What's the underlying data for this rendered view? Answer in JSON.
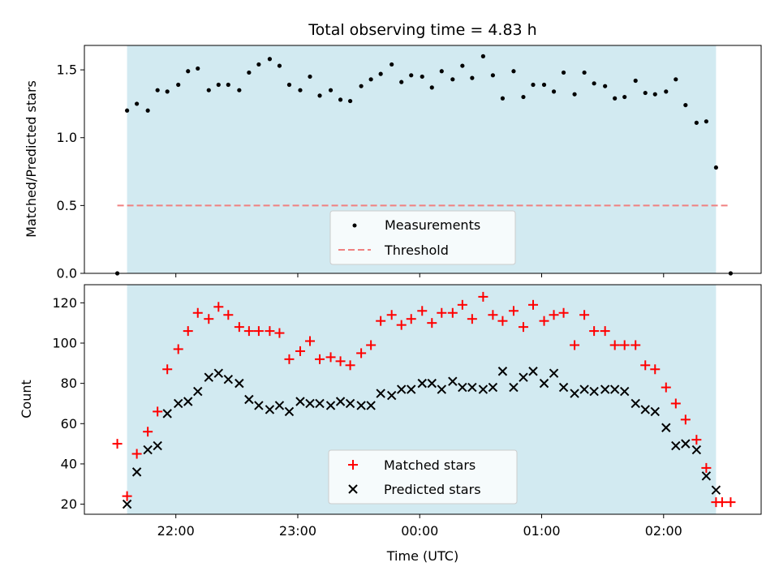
{
  "colors": {
    "shade": "#add8e6",
    "matched": "#ff0000",
    "predicted": "#000000",
    "measurement": "#000000",
    "threshold": "#f08080"
  },
  "chart_data": [
    {
      "type": "scatter",
      "title": "Total observing time = 4.83 h",
      "xlabel": "",
      "ylabel": "Matched/Predicted stars",
      "x_unit": "hours since 00:00 UTC (negative = previous day)",
      "xlim": [
        -2.75,
        2.8
      ],
      "ylim": [
        0,
        1.68
      ],
      "yticks": [
        0.0,
        0.5,
        1.0,
        1.5
      ],
      "ytick_labels": [
        "0.0",
        "0.5",
        "1.0",
        "1.5"
      ],
      "xticks": [
        -2,
        -1,
        0,
        1,
        2
      ],
      "show_xtick_labels": false,
      "shaded_interval": [
        -2.4,
        2.43
      ],
      "legend_position": "bottom-center",
      "threshold": 0.5,
      "threshold_x": [
        -2.48,
        2.55
      ],
      "series": [
        {
          "name": "Measurements",
          "marker": "dot",
          "x": [
            -2.48,
            -2.4,
            -2.32,
            -2.23,
            -2.15,
            -2.07,
            -1.98,
            -1.9,
            -1.82,
            -1.73,
            -1.65,
            -1.57,
            -1.48,
            -1.4,
            -1.32,
            -1.23,
            -1.15,
            -1.07,
            -0.98,
            -0.9,
            -0.82,
            -0.73,
            -0.65,
            -0.57,
            -0.48,
            -0.4,
            -0.32,
            -0.23,
            -0.15,
            -0.07,
            0.02,
            0.1,
            0.18,
            0.27,
            0.35,
            0.43,
            0.52,
            0.6,
            0.68,
            0.77,
            0.85,
            0.93,
            1.02,
            1.1,
            1.18,
            1.27,
            1.35,
            1.43,
            1.52,
            1.6,
            1.68,
            1.77,
            1.85,
            1.93,
            2.02,
            2.1,
            2.18,
            2.27,
            2.35,
            2.43,
            2.55
          ],
          "y": [
            0.0,
            1.2,
            1.25,
            1.2,
            1.35,
            1.34,
            1.39,
            1.49,
            1.51,
            1.35,
            1.39,
            1.39,
            1.35,
            1.48,
            1.54,
            1.58,
            1.53,
            1.39,
            1.35,
            1.45,
            1.31,
            1.35,
            1.28,
            1.27,
            1.38,
            1.43,
            1.47,
            1.54,
            1.41,
            1.46,
            1.45,
            1.37,
            1.49,
            1.43,
            1.53,
            1.44,
            1.6,
            1.46,
            1.29,
            1.49,
            1.3,
            1.39,
            1.39,
            1.34,
            1.48,
            1.32,
            1.48,
            1.4,
            1.38,
            1.29,
            1.3,
            1.42,
            1.33,
            1.32,
            1.34,
            1.43,
            1.24,
            1.11,
            1.12,
            0.78,
            0.0
          ]
        },
        {
          "name": "Threshold",
          "marker": "dashed-line"
        }
      ]
    },
    {
      "type": "scatter",
      "title": "",
      "xlabel": "Time (UTC)",
      "ylabel": "Count",
      "x_unit": "hours since 00:00 UTC (negative = previous day)",
      "xlim": [
        -2.75,
        2.8
      ],
      "ylim": [
        15,
        129
      ],
      "yticks": [
        20,
        40,
        60,
        80,
        100,
        120
      ],
      "ytick_labels": [
        "20",
        "40",
        "60",
        "80",
        "100",
        "120"
      ],
      "xticks": [
        -2,
        -1,
        0,
        1,
        2
      ],
      "xtick_labels": [
        "22:00",
        "23:00",
        "00:00",
        "01:00",
        "02:00"
      ],
      "shaded_interval": [
        -2.4,
        2.43
      ],
      "legend_position": "bottom-center",
      "series": [
        {
          "name": "Matched stars",
          "marker": "plus",
          "x": [
            -2.48,
            -2.4,
            -2.32,
            -2.23,
            -2.15,
            -2.07,
            -1.98,
            -1.9,
            -1.82,
            -1.73,
            -1.65,
            -1.57,
            -1.48,
            -1.4,
            -1.32,
            -1.23,
            -1.15,
            -1.07,
            -0.98,
            -0.9,
            -0.82,
            -0.73,
            -0.65,
            -0.57,
            -0.48,
            -0.4,
            -0.32,
            -0.23,
            -0.15,
            -0.07,
            0.02,
            0.1,
            0.18,
            0.27,
            0.35,
            0.43,
            0.52,
            0.6,
            0.68,
            0.77,
            0.85,
            0.93,
            1.02,
            1.1,
            1.18,
            1.27,
            1.35,
            1.43,
            1.52,
            1.6,
            1.68,
            1.77,
            1.85,
            1.93,
            2.02,
            2.1,
            2.18,
            2.27,
            2.35,
            2.43,
            2.48,
            2.55
          ],
          "y": [
            50,
            24,
            45,
            56,
            66,
            87,
            97,
            106,
            115,
            112,
            118,
            114,
            108,
            106,
            106,
            106,
            105,
            92,
            96,
            101,
            92,
            93,
            91,
            89,
            95,
            99,
            111,
            114,
            109,
            112,
            116,
            110,
            115,
            115,
            119,
            112,
            123,
            114,
            111,
            116,
            108,
            119,
            111,
            114,
            115,
            99,
            114,
            106,
            106,
            99,
            99,
            99,
            89,
            87,
            78,
            70,
            62,
            52,
            38,
            21,
            21,
            21
          ]
        },
        {
          "name": "Predicted stars",
          "marker": "x",
          "x": [
            -2.4,
            -2.32,
            -2.23,
            -2.15,
            -2.07,
            -1.98,
            -1.9,
            -1.82,
            -1.73,
            -1.65,
            -1.57,
            -1.48,
            -1.4,
            -1.32,
            -1.23,
            -1.15,
            -1.07,
            -0.98,
            -0.9,
            -0.82,
            -0.73,
            -0.65,
            -0.57,
            -0.48,
            -0.4,
            -0.32,
            -0.23,
            -0.15,
            -0.07,
            0.02,
            0.1,
            0.18,
            0.27,
            0.35,
            0.43,
            0.52,
            0.6,
            0.68,
            0.77,
            0.85,
            0.93,
            1.02,
            1.1,
            1.18,
            1.27,
            1.35,
            1.43,
            1.52,
            1.6,
            1.68,
            1.77,
            1.85,
            1.93,
            2.02,
            2.1,
            2.18,
            2.27,
            2.35,
            2.43
          ],
          "y": [
            20,
            36,
            47,
            49,
            65,
            70,
            71,
            76,
            83,
            85,
            82,
            80,
            72,
            69,
            67,
            69,
            66,
            71,
            70,
            70,
            69,
            71,
            70,
            69,
            69,
            75,
            74,
            77,
            77,
            80,
            80,
            77,
            81,
            78,
            78,
            77,
            78,
            86,
            78,
            83,
            86,
            80,
            85,
            78,
            75,
            77,
            76,
            77,
            77,
            76,
            70,
            67,
            66,
            58,
            49,
            50,
            47,
            34,
            27
          ]
        }
      ]
    }
  ]
}
